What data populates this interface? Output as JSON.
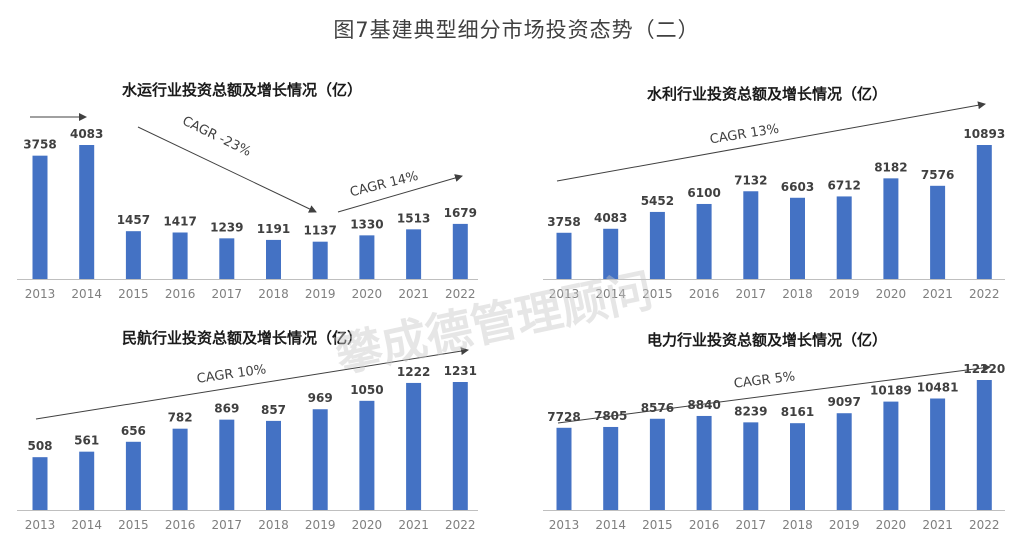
{
  "title": "图7基建典型细分市场投资态势（二）",
  "watermark": "攀成德管理顾问",
  "colors": {
    "bar": "#4472c4",
    "axis": "#bfbfbf",
    "arrow": "#404040"
  },
  "chart_data": [
    {
      "type": "bar",
      "title": "水运行业投资总额及增长情况（亿）",
      "categories": [
        "2013",
        "2014",
        "2015",
        "2016",
        "2017",
        "2018",
        "2019",
        "2020",
        "2021",
        "2022"
      ],
      "values": [
        3758,
        4083,
        1457,
        1417,
        1239,
        1191,
        1137,
        1330,
        1513,
        1679
      ],
      "annotations": [
        "CAGR -23%",
        "CAGR 14%"
      ]
    },
    {
      "type": "bar",
      "title": "水利行业投资总额及增长情况（亿）",
      "categories": [
        "2013",
        "2014",
        "2015",
        "2016",
        "2017",
        "2018",
        "2019",
        "2020",
        "2021",
        "2022"
      ],
      "values": [
        3758,
        4083,
        5452,
        6100,
        7132,
        6603,
        6712,
        8182,
        7576,
        10893
      ],
      "annotations": [
        "CAGR 13%"
      ]
    },
    {
      "type": "bar",
      "title": "民航行业投资总额及增长情况（亿）",
      "categories": [
        "2013",
        "2014",
        "2015",
        "2016",
        "2017",
        "2018",
        "2019",
        "2020",
        "2021",
        "2022"
      ],
      "values": [
        508,
        561,
        656,
        782,
        869,
        857,
        969,
        1050,
        1222,
        1231
      ],
      "annotations": [
        "CAGR 10%"
      ]
    },
    {
      "type": "bar",
      "title": "电力行业投资总额及增长情况（亿）",
      "categories": [
        "2013",
        "2014",
        "2015",
        "2016",
        "2017",
        "2018",
        "2019",
        "2020",
        "2021",
        "2022"
      ],
      "values": [
        7728,
        7805,
        8576,
        8840,
        8239,
        8161,
        9097,
        10189,
        10481,
        12220
      ],
      "annotations": [
        "CAGR 5%"
      ]
    }
  ]
}
